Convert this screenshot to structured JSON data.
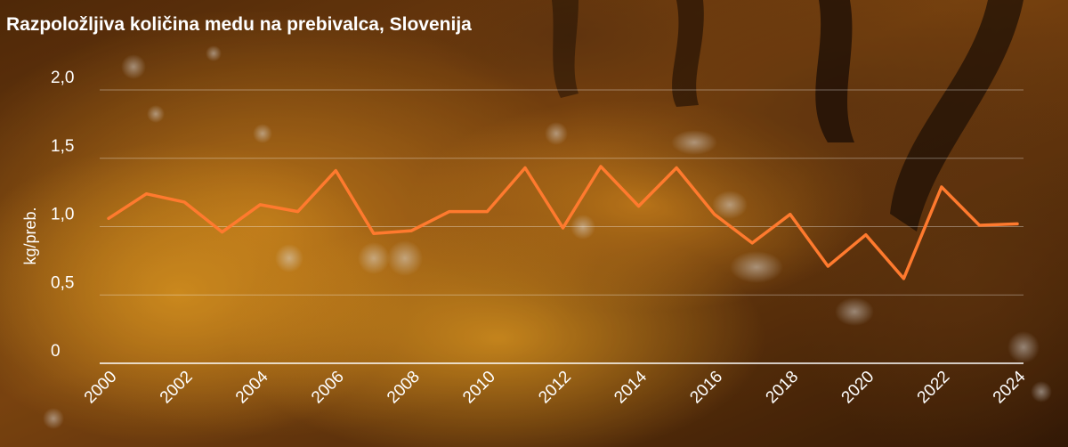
{
  "chart_data": {
    "type": "line",
    "title": "Razpoložljiva količina medu na prebivalca, Slovenija",
    "xlabel": "",
    "ylabel": "kg/preb.",
    "x": [
      2000,
      2001,
      2002,
      2003,
      2004,
      2005,
      2006,
      2007,
      2008,
      2009,
      2010,
      2011,
      2012,
      2013,
      2014,
      2015,
      2016,
      2017,
      2018,
      2019,
      2020,
      2021,
      2022,
      2023,
      2024
    ],
    "series": [
      {
        "values": [
          1.06,
          1.24,
          1.18,
          0.96,
          1.16,
          1.11,
          1.41,
          0.95,
          0.97,
          1.11,
          1.11,
          1.43,
          0.99,
          1.44,
          1.15,
          1.43,
          1.09,
          0.88,
          1.09,
          0.71,
          0.94,
          0.62,
          1.29,
          1.01,
          1.02
        ]
      }
    ],
    "xticks": [
      "2000",
      "2002",
      "2004",
      "2006",
      "2008",
      "2010",
      "2012",
      "2014",
      "2016",
      "2018",
      "2020",
      "2022",
      "2024"
    ],
    "yticks": [
      "0",
      "0,5",
      "1,0",
      "1,5",
      "2,0"
    ],
    "ylim": [
      0,
      2.0
    ],
    "grid": true,
    "line_color": "#ff7a2e"
  }
}
